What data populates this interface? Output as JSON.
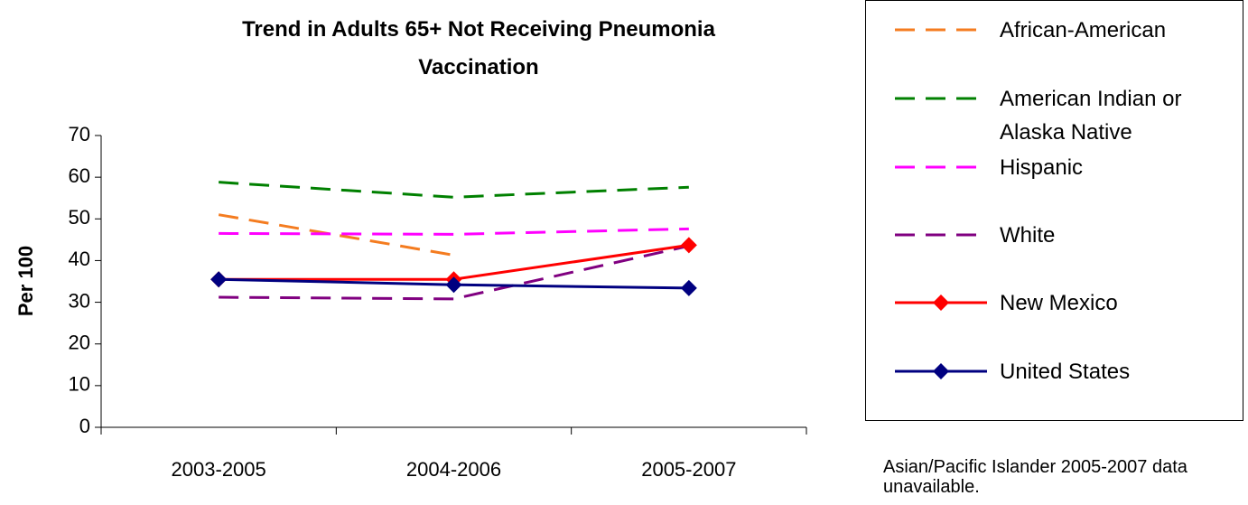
{
  "chart_data": {
    "type": "line",
    "title": "Trend in Adults 65+ Not Receiving Pneumonia Vaccination",
    "y_label": "Per 100",
    "categories": [
      "2003-2005",
      "2004-2006",
      "2005-2007"
    ],
    "series": [
      {
        "name": "African-American",
        "color": "#f47c20",
        "dashed": true,
        "marker": "none",
        "values": [
          51,
          41.3,
          null
        ]
      },
      {
        "name": "American Indian or Alaska Native",
        "color": "#008000",
        "dashed": true,
        "marker": "none",
        "values": [
          58.8,
          55.2,
          57.6
        ]
      },
      {
        "name": "Hispanic",
        "color": "#ff00ff",
        "dashed": true,
        "marker": "none",
        "values": [
          46.5,
          46.3,
          47.6
        ]
      },
      {
        "name": "White",
        "color": "#800080",
        "dashed": true,
        "marker": "none",
        "values": [
          31.2,
          30.8,
          43.5
        ]
      },
      {
        "name": "New Mexico",
        "color": "#ff0000",
        "dashed": false,
        "marker": "diamond",
        "values": [
          35.5,
          35.5,
          43.7
        ]
      },
      {
        "name": "United States",
        "color": "#000080",
        "dashed": false,
        "marker": "diamond",
        "values": [
          35.5,
          34.2,
          33.4
        ]
      }
    ],
    "ylim": [
      0,
      70
    ],
    "yticks": [
      0,
      10,
      20,
      30,
      40,
      50,
      60,
      70
    ],
    "legend": "right",
    "note": "Asian/Pacific Islander 2005-2007 data unavailable."
  }
}
